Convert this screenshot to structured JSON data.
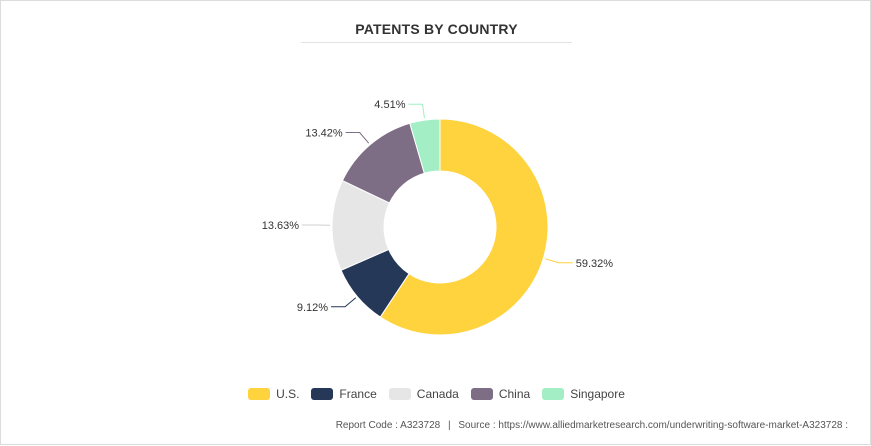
{
  "title": "PATENTS BY COUNTRY",
  "footer": {
    "report_code": "Report Code : A323728",
    "separator": "|",
    "source": "Source : https://www.alliedmarketresearch.com/underwriting-software-market-A323728 :"
  },
  "chart_data": {
    "type": "pie",
    "subtype": "donut",
    "title": "PATENTS BY COUNTRY",
    "legend_position": "bottom-center",
    "slices": [
      {
        "label": "U.S.",
        "value": 59.32,
        "display": "59.32%",
        "color": "#FFD33D"
      },
      {
        "label": "France",
        "value": 9.12,
        "display": "9.12%",
        "color": "#253858"
      },
      {
        "label": "Canada",
        "value": 13.63,
        "display": "13.63%",
        "color": "#E6E6E6"
      },
      {
        "label": "China",
        "value": 13.42,
        "display": "13.42%",
        "color": "#7D6E85"
      },
      {
        "label": "Singapore",
        "value": 4.51,
        "display": "4.51%",
        "color": "#A3EEC4"
      }
    ]
  }
}
